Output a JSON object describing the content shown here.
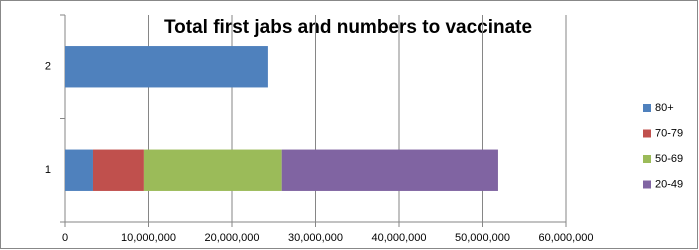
{
  "chart_data": {
    "type": "stacked-bar-horizontal",
    "title": "Total first jabs and numbers to vaccinate",
    "categories": [
      "1",
      "2"
    ],
    "series": [
      {
        "name": "80+",
        "color": "#4f81bd",
        "values": [
          3350000,
          24300000
        ]
      },
      {
        "name": "70-79",
        "color": "#c0504d",
        "values": [
          6100000,
          null
        ]
      },
      {
        "name": "50-69",
        "color": "#9bbb59",
        "values": [
          16500000,
          null
        ]
      },
      {
        "name": "20-49",
        "color": "#8064a2",
        "values": [
          25900000,
          null
        ]
      }
    ],
    "xlim": [
      0,
      60000000
    ],
    "xticks": [
      0,
      {
        "value": 10000000,
        "label": "10,000,000"
      },
      {
        "value": 20000000,
        "label": "20,000,000"
      },
      {
        "value": 30000000,
        "label": "30,000,000"
      },
      {
        "value": 40000000,
        "label": "40,000,000"
      },
      {
        "value": 50000000,
        "label": "50,000,000"
      },
      {
        "value": 60000000,
        "label": "60,000,000"
      }
    ],
    "grid": true,
    "legend": "right"
  }
}
